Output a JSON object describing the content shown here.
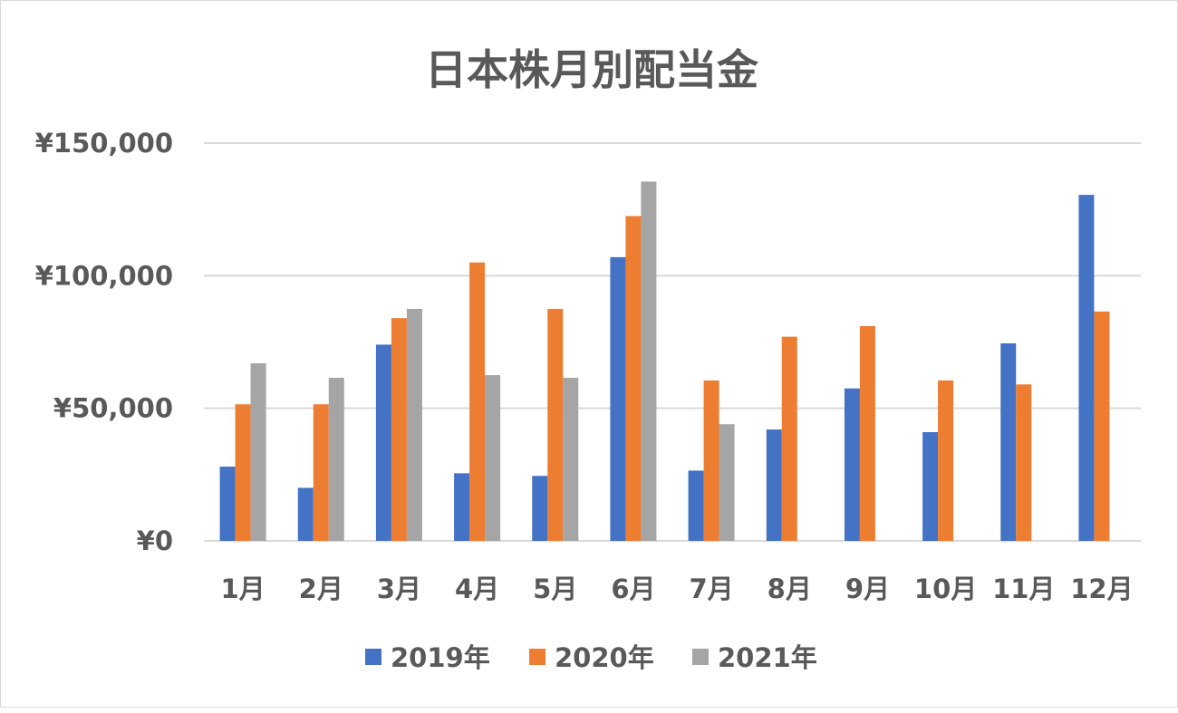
{
  "chart_data": {
    "type": "bar",
    "title": "日本株月別配当金",
    "xlabel": "",
    "ylabel": "",
    "categories": [
      "1月",
      "2月",
      "3月",
      "4月",
      "5月",
      "6月",
      "7月",
      "8月",
      "9月",
      "10月",
      "11月",
      "12月"
    ],
    "series": [
      {
        "name": "2019年",
        "color": "#4472c4",
        "values": [
          28000,
          20000,
          74000,
          25500,
          24500,
          107000,
          26500,
          42000,
          57500,
          41000,
          74500,
          130500
        ]
      },
      {
        "name": "2020年",
        "color": "#ed7d31",
        "values": [
          51500,
          51500,
          84000,
          105000,
          87500,
          122500,
          60500,
          77000,
          81000,
          60500,
          59000,
          86500
        ]
      },
      {
        "name": "2021年",
        "color": "#a5a5a5",
        "values": [
          67000,
          61500,
          87500,
          62500,
          61500,
          135500,
          44000,
          null,
          null,
          null,
          null,
          null
        ]
      }
    ],
    "ylim": [
      0,
      150000
    ],
    "yticks": [
      {
        "value": 0,
        "label": "¥0"
      },
      {
        "value": 50000,
        "label": "¥50,000"
      },
      {
        "value": 100000,
        "label": "¥100,000"
      },
      {
        "value": 150000,
        "label": "¥150,000"
      }
    ],
    "grid": true,
    "legend_position": "bottom"
  }
}
